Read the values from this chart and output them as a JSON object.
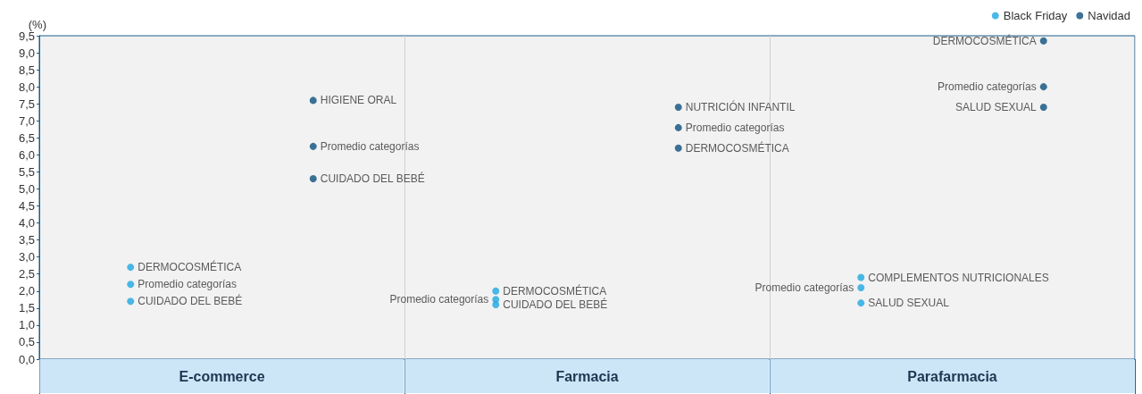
{
  "chart_data": {
    "type": "scatter",
    "ylabel": "(%)",
    "categories": [
      "E-commerce",
      "Farmacia",
      "Parafarmacia"
    ],
    "series": [
      {
        "name": "Black Friday",
        "color": "#1ea7e1",
        "x": [
          "E-commerce",
          "E-commerce",
          "E-commerce",
          "Farmacia",
          "Farmacia",
          "Farmacia",
          "Parafarmacia",
          "Parafarmacia",
          "Parafarmacia"
        ],
        "values": [
          2.7,
          2.2,
          1.7,
          2.0,
          1.75,
          1.6,
          2.4,
          2.1,
          1.65
        ],
        "value_labels": [
          "DERMOCOSMÉTICA",
          "Promedio categorías",
          "CUIDADO DEL BEBÉ",
          "DERMOCOSMÉTICA",
          "Promedio categorías",
          "CUIDADO DEL BEBÉ",
          "COMPLEMENTOS NUTRICIONALES",
          "Promedio categorías",
          "SALUD SEXUAL"
        ]
      },
      {
        "name": "Navidad",
        "color": "#0b4f7c",
        "x": [
          "E-commerce",
          "E-commerce",
          "E-commerce",
          "Farmacia",
          "Farmacia",
          "Farmacia",
          "Parafarmacia",
          "Parafarmacia",
          "Parafarmacia"
        ],
        "values": [
          7.6,
          6.25,
          5.3,
          7.4,
          6.8,
          6.2,
          9.35,
          8.0,
          7.4
        ],
        "value_labels": [
          "HIGIENE ORAL",
          "Promedio categorías",
          "CUIDADO DEL BEBÉ",
          "NUTRICIÓN INFANTIL",
          "Promedio categorías",
          "DERMOCOSMÉTICA",
          "DERMOCOSMÉTICA",
          "Promedio categorías",
          "SALUD SEXUAL"
        ]
      }
    ],
    "ylim": [
      0,
      9.5
    ],
    "yticks": [
      {
        "value": 0,
        "label": "0,0"
      },
      {
        "value": 0.5,
        "label": "0,5"
      },
      {
        "value": 1,
        "label": "1,0"
      },
      {
        "value": 1.5,
        "label": "1,5"
      },
      {
        "value": 2,
        "label": "2,0"
      },
      {
        "value": 2.5,
        "label": "2,5"
      },
      {
        "value": 3,
        "label": "3,0"
      },
      {
        "value": 3.5,
        "label": "3,5"
      },
      {
        "value": 4,
        "label": "4,0"
      },
      {
        "value": 4.5,
        "label": "4,5"
      },
      {
        "value": 5,
        "label": "5,0"
      },
      {
        "value": 5.5,
        "label": "5,5"
      },
      {
        "value": 6,
        "label": "6,0"
      },
      {
        "value": 6.5,
        "label": "6,5"
      },
      {
        "value": 7,
        "label": "7,0"
      },
      {
        "value": 7.5,
        "label": "7,5"
      },
      {
        "value": 8,
        "label": "8,0"
      },
      {
        "value": 8.5,
        "label": "8,5"
      },
      {
        "value": 9,
        "label": "9,0"
      },
      {
        "value": 9.5,
        "label": "9,5"
      }
    ],
    "grid": "x",
    "legend": "top right",
    "marker": "circle"
  }
}
